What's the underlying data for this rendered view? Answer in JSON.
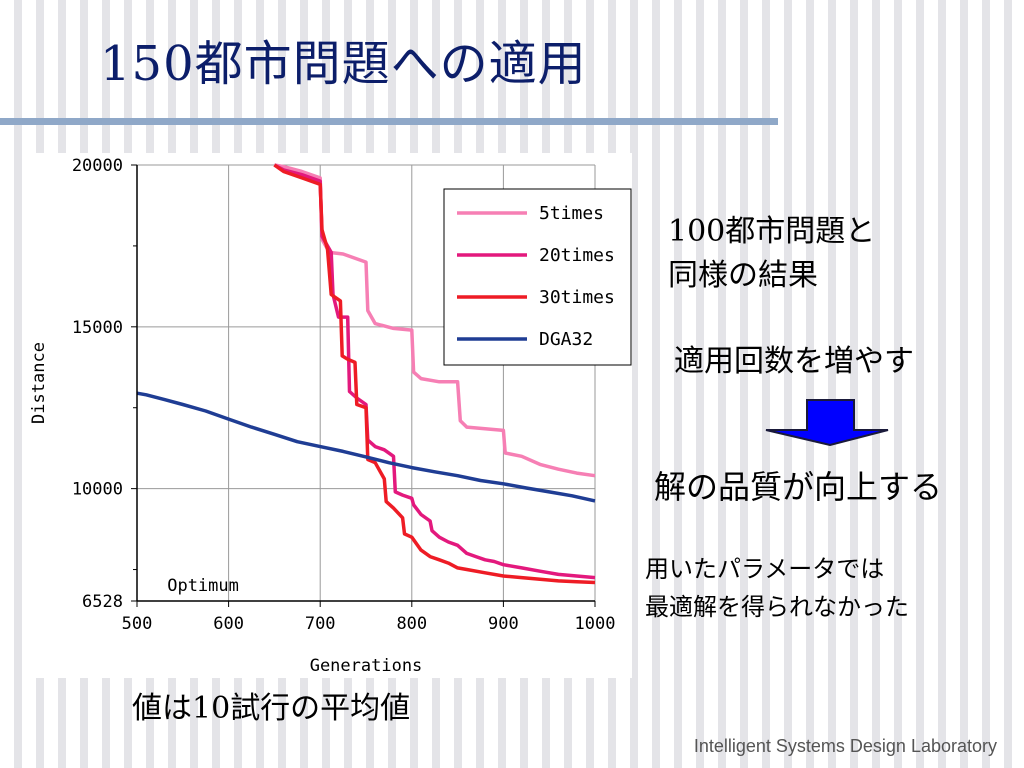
{
  "slide": {
    "title_num": "150",
    "title_text": "都市問題への適用",
    "note_100_num": "100",
    "note_100_rest": "都市問題と",
    "note_100_line2": "同様の結果",
    "note_increase": "適用回数を増やす",
    "note_quality": "解の品質が向上する",
    "note_param_line1": "用いたパラメータでは",
    "note_param_line2": "最適解を得られなかった",
    "avg_prefix": "値は",
    "avg_num": "10",
    "avg_suffix": "試行の平均値",
    "footer": "Intelligent Systems Design Laboratory"
  },
  "chart_data": {
    "type": "line",
    "xlabel": "Generations",
    "ylabel": "Distance",
    "xlim": [
      500,
      1000
    ],
    "ylim": [
      6528,
      20000
    ],
    "x_ticks": [
      "500",
      "600",
      "700",
      "800",
      "900",
      "1000"
    ],
    "y_ticks": [
      "20000",
      "15000",
      "10000",
      "6528"
    ],
    "grid": true,
    "legend_position": "top-right",
    "annotation": {
      "text": "Optimum",
      "value": 6528
    },
    "series": [
      {
        "name": "5times",
        "color": "#f67fb4",
        "points": [
          [
            650,
            20000
          ],
          [
            660,
            19950
          ],
          [
            680,
            19800
          ],
          [
            700,
            19600
          ],
          [
            702,
            17700
          ],
          [
            710,
            17300
          ],
          [
            725,
            17250
          ],
          [
            740,
            17100
          ],
          [
            750,
            17000
          ],
          [
            752,
            15500
          ],
          [
            760,
            15100
          ],
          [
            780,
            14950
          ],
          [
            800,
            14900
          ],
          [
            802,
            13600
          ],
          [
            810,
            13400
          ],
          [
            830,
            13300
          ],
          [
            850,
            13300
          ],
          [
            853,
            12100
          ],
          [
            860,
            11900
          ],
          [
            880,
            11850
          ],
          [
            900,
            11800
          ],
          [
            902,
            11100
          ],
          [
            920,
            11000
          ],
          [
            940,
            10750
          ],
          [
            960,
            10600
          ],
          [
            980,
            10480
          ],
          [
            1000,
            10400
          ]
        ]
      },
      {
        "name": "20times",
        "color": "#e3197d",
        "points": [
          [
            650,
            20000
          ],
          [
            660,
            19850
          ],
          [
            680,
            19700
          ],
          [
            700,
            19500
          ],
          [
            702,
            17800
          ],
          [
            712,
            17300
          ],
          [
            714,
            16000
          ],
          [
            720,
            15300
          ],
          [
            730,
            15300
          ],
          [
            732,
            13000
          ],
          [
            740,
            12800
          ],
          [
            750,
            12600
          ],
          [
            752,
            11500
          ],
          [
            760,
            11300
          ],
          [
            770,
            11200
          ],
          [
            780,
            11000
          ],
          [
            782,
            9900
          ],
          [
            790,
            9800
          ],
          [
            800,
            9700
          ],
          [
            802,
            9500
          ],
          [
            810,
            9200
          ],
          [
            820,
            9000
          ],
          [
            822,
            8700
          ],
          [
            830,
            8500
          ],
          [
            840,
            8350
          ],
          [
            850,
            8250
          ],
          [
            860,
            8000
          ],
          [
            870,
            7900
          ],
          [
            880,
            7800
          ],
          [
            890,
            7750
          ],
          [
            900,
            7650
          ],
          [
            920,
            7550
          ],
          [
            940,
            7450
          ],
          [
            960,
            7350
          ],
          [
            980,
            7300
          ],
          [
            1000,
            7250
          ]
        ]
      },
      {
        "name": "30times",
        "color": "#ee1c25",
        "points": [
          [
            650,
            20000
          ],
          [
            660,
            19800
          ],
          [
            680,
            19600
          ],
          [
            700,
            19400
          ],
          [
            702,
            18000
          ],
          [
            708,
            17400
          ],
          [
            712,
            16000
          ],
          [
            722,
            15800
          ],
          [
            724,
            14100
          ],
          [
            730,
            14000
          ],
          [
            738,
            13900
          ],
          [
            740,
            12600
          ],
          [
            750,
            12500
          ],
          [
            752,
            10900
          ],
          [
            760,
            10800
          ],
          [
            770,
            10300
          ],
          [
            772,
            9600
          ],
          [
            780,
            9400
          ],
          [
            790,
            9100
          ],
          [
            792,
            8600
          ],
          [
            800,
            8500
          ],
          [
            810,
            8100
          ],
          [
            820,
            7900
          ],
          [
            830,
            7800
          ],
          [
            840,
            7700
          ],
          [
            850,
            7550
          ],
          [
            860,
            7500
          ],
          [
            880,
            7400
          ],
          [
            900,
            7300
          ],
          [
            920,
            7250
          ],
          [
            940,
            7200
          ],
          [
            960,
            7150
          ],
          [
            980,
            7120
          ],
          [
            1000,
            7100
          ]
        ]
      },
      {
        "name": "DGA32",
        "color": "#1f3d94",
        "points": [
          [
            500,
            12950
          ],
          [
            510,
            12900
          ],
          [
            530,
            12750
          ],
          [
            550,
            12600
          ],
          [
            575,
            12400
          ],
          [
            600,
            12150
          ],
          [
            625,
            11900
          ],
          [
            650,
            11680
          ],
          [
            675,
            11450
          ],
          [
            700,
            11300
          ],
          [
            725,
            11150
          ],
          [
            750,
            10980
          ],
          [
            775,
            10800
          ],
          [
            800,
            10650
          ],
          [
            825,
            10520
          ],
          [
            850,
            10400
          ],
          [
            875,
            10250
          ],
          [
            900,
            10150
          ],
          [
            925,
            10020
          ],
          [
            950,
            9900
          ],
          [
            975,
            9780
          ],
          [
            1000,
            9620
          ]
        ]
      }
    ]
  }
}
